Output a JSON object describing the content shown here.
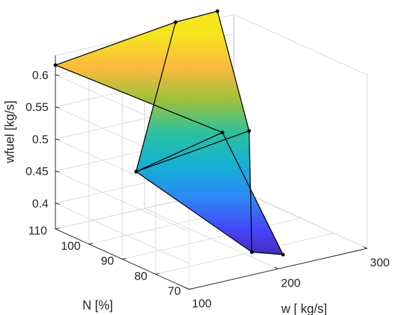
{
  "chart_data": {
    "type": "surface",
    "title": "",
    "xlabel": "w [ kg/s]",
    "ylabel": "N [%]",
    "zlabel": "wfuel [kg/s]",
    "x_ticks": [
      "100",
      "200",
      "300"
    ],
    "y_ticks": [
      "70",
      "80",
      "90",
      "100",
      "110"
    ],
    "z_ticks": [
      "0.4",
      "0.45",
      "0.5",
      "0.55",
      "0.6"
    ],
    "xlim": [
      100,
      300
    ],
    "ylim": [
      70,
      110
    ],
    "zlim": [
      0.36,
      0.63
    ],
    "grid": true,
    "colormap": "parula",
    "colormap_stops": [
      "#3e26a8",
      "#4743f7",
      "#2e87f7",
      "#13b1d5",
      "#2cc19f",
      "#9bc13c",
      "#fcba3d",
      "#f6e51e"
    ],
    "points": [
      {
        "w": 208,
        "N": 80,
        "wfuel": 0.36
      },
      {
        "w": 243,
        "N": 80,
        "wfuel": 0.345
      },
      {
        "w": 138,
        "N": 96,
        "wfuel": 0.47
      },
      {
        "w": 235,
        "N": 96,
        "wfuel": 0.5
      },
      {
        "w": 265,
        "N": 96,
        "wfuel": 0.493
      },
      {
        "w": 100,
        "N": 110,
        "wfuel": 0.615
      },
      {
        "w": 235,
        "N": 110,
        "wfuel": 0.639
      },
      {
        "w": 282,
        "N": 110,
        "wfuel": 0.641
      }
    ],
    "grid_rows": [
      [
        1,
        0
      ],
      [
        3,
        2,
        4
      ],
      [
        5,
        6,
        7
      ]
    ]
  }
}
